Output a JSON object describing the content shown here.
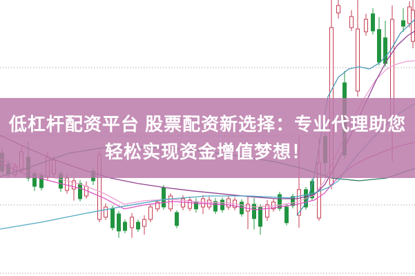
{
  "banner": {
    "line1": "低杠杆配资平台 股票配资新选择：专业代理助您",
    "line2": "轻松实现资金增值梦想！",
    "background_color": "rgba(186,120,168,0.84)",
    "text_color": "#ffffff"
  },
  "colors": {
    "background": "#ffffff",
    "grid": "#aaaaaa",
    "up_candle": "#c5394e",
    "down_candle": "#219440"
  },
  "chart_data": {
    "type": "candlestick",
    "title": "",
    "axis_labels_visible": false,
    "grid": "horizontal-dotted",
    "xlim": [
      0,
      601
    ],
    "ylim": [
      0,
      100
    ],
    "gridlines_y": [
      75.5,
      50.75,
      25.75,
      1
    ],
    "candle_note_scale": "price normalized 0-100 of chart height (no axis labels shown in image)",
    "candles": [
      [
        3,
        46.3,
        44.5,
        38,
        37,
        "down"
      ],
      [
        12,
        42,
        40.5,
        37,
        36,
        "down"
      ],
      [
        22,
        41,
        39.5,
        36.8,
        35.8,
        "up"
      ],
      [
        31,
        46.8,
        45,
        38.3,
        37.3,
        "up"
      ],
      [
        41,
        48.8,
        43,
        35.5,
        34.3,
        "down"
      ],
      [
        50,
        38.3,
        37,
        32.5,
        30.8,
        "down"
      ],
      [
        60,
        37.5,
        36.5,
        32,
        31,
        "down"
      ],
      [
        69,
        44.8,
        43,
        36,
        34.5,
        "up"
      ],
      [
        78,
        43.5,
        42,
        37,
        35.5,
        "up"
      ],
      [
        88,
        38,
        37,
        31.8,
        30.5,
        "down"
      ],
      [
        97,
        36.8,
        35.5,
        31,
        29.8,
        "up"
      ],
      [
        107,
        35.8,
        34.5,
        31.5,
        27.3,
        "up"
      ],
      [
        116,
        34.8,
        33.5,
        28,
        27,
        "down"
      ],
      [
        125,
        34.3,
        32.5,
        29,
        28,
        "up"
      ],
      [
        135,
        39,
        38,
        34.5,
        33,
        "down"
      ],
      [
        144,
        45.3,
        44,
        20.5,
        19.5,
        "up"
      ],
      [
        153,
        26.3,
        25,
        21.3,
        20.3,
        "up"
      ],
      [
        163,
        25.5,
        24.5,
        17.5,
        16.5,
        "down"
      ],
      [
        172,
        23.5,
        22.5,
        16.3,
        13.8,
        "down"
      ],
      [
        181,
        20.5,
        19.5,
        16.5,
        15.5,
        "down"
      ],
      [
        191,
        22.8,
        21.3,
        17.5,
        13.8,
        "up"
      ],
      [
        200,
        20.5,
        19.5,
        17,
        16,
        "down"
      ],
      [
        209,
        22,
        20.5,
        18,
        15,
        "up"
      ],
      [
        218,
        25.8,
        25,
        20.5,
        19.5,
        "up"
      ],
      [
        228,
        27.5,
        26.8,
        24.3,
        23.3,
        "up"
      ],
      [
        237,
        33,
        32,
        25,
        24,
        "down"
      ],
      [
        247,
        30,
        29,
        24.3,
        23.3,
        "up"
      ],
      [
        256,
        23.8,
        23,
        18.3,
        17.3,
        "down"
      ],
      [
        265,
        29.3,
        28,
        25,
        23.8,
        "up"
      ],
      [
        275,
        28.8,
        27.5,
        24.5,
        23.5,
        "up"
      ],
      [
        284,
        28.3,
        27,
        24.3,
        23,
        "down"
      ],
      [
        294,
        29.3,
        28,
        25,
        22.5,
        "up"
      ],
      [
        303,
        28.8,
        27.5,
        25,
        24,
        "up"
      ],
      [
        312,
        28.3,
        27,
        23.5,
        22.5,
        "down"
      ],
      [
        322,
        28.5,
        27.5,
        24,
        23,
        "down"
      ],
      [
        331,
        29,
        28,
        25,
        24,
        "up"
      ],
      [
        340,
        28.5,
        27.5,
        24.8,
        23.8,
        "up"
      ],
      [
        350,
        27.8,
        26.8,
        22.5,
        21.5,
        "down"
      ],
      [
        359,
        28.8,
        26,
        23.5,
        17,
        "up"
      ],
      [
        368,
        28.3,
        26,
        20.8,
        16.8,
        "down"
      ],
      [
        377,
        26,
        25,
        18,
        15,
        "down"
      ],
      [
        387,
        27.5,
        25.8,
        21.3,
        20,
        "up"
      ],
      [
        396,
        27.8,
        26.8,
        24.3,
        23.3,
        "up"
      ],
      [
        405,
        30.5,
        29.5,
        24.5,
        23.5,
        "down"
      ],
      [
        415,
        26,
        25,
        19.3,
        18.3,
        "down"
      ],
      [
        424,
        29.8,
        28.8,
        25.5,
        24.5,
        "down"
      ],
      [
        433,
        50.5,
        31.3,
        22,
        17.5,
        "up"
      ],
      [
        443,
        32.3,
        31.3,
        25,
        24,
        "down"
      ],
      [
        452,
        35.3,
        34.3,
        28.3,
        27.3,
        "down"
      ],
      [
        462,
        50,
        41,
        21,
        20,
        "up"
      ],
      [
        471,
        52,
        50.5,
        41,
        36.3,
        "down"
      ],
      [
        480,
        100,
        90,
        33,
        31.5,
        "up"
      ],
      [
        490,
        100,
        98,
        95.3,
        93.3,
        "up"
      ],
      [
        499,
        74.3,
        70,
        43.8,
        42.5,
        "down"
      ],
      [
        509,
        96.3,
        94,
        90,
        88.8,
        "up"
      ],
      [
        518,
        100,
        89.5,
        67,
        65,
        "up"
      ],
      [
        530,
        95,
        93,
        88.5,
        87,
        "up"
      ],
      [
        540,
        97,
        95,
        88.8,
        87.5,
        "down"
      ],
      [
        549,
        93.8,
        89.3,
        77.5,
        76.3,
        "down"
      ],
      [
        558,
        92.5,
        86.3,
        77,
        75.8,
        "down"
      ],
      [
        568,
        98,
        93,
        57.5,
        41.3,
        "up"
      ],
      [
        584,
        97,
        92.5,
        90.5,
        88.5,
        "down"
      ],
      [
        593,
        99.5,
        97.5,
        91.5,
        90,
        "up"
      ],
      [
        598,
        100,
        96.3,
        85,
        82.5,
        "up"
      ]
    ],
    "lines": [
      {
        "name": "ma-pink",
        "color": "#ee9fd2",
        "points": [
          [
            0,
            42.5
          ],
          [
            40,
            38
          ],
          [
            80,
            35.5
          ],
          [
            120,
            33
          ],
          [
            150,
            30
          ],
          [
            180,
            26
          ],
          [
            210,
            27.3
          ],
          [
            250,
            27.8
          ],
          [
            290,
            26.8
          ],
          [
            330,
            26.5
          ],
          [
            370,
            25
          ],
          [
            400,
            25.5
          ],
          [
            430,
            26.8
          ],
          [
            455,
            29.3
          ],
          [
            470,
            34.5
          ],
          [
            485,
            43
          ],
          [
            500,
            51
          ],
          [
            515,
            58.5
          ],
          [
            530,
            65.5
          ],
          [
            545,
            71.3
          ],
          [
            560,
            75
          ],
          [
            575,
            76.8
          ],
          [
            590,
            77.8
          ],
          [
            601,
            78
          ]
        ]
      },
      {
        "name": "ma-magenta",
        "color": "#dd4fc0",
        "points": [
          [
            0,
            41
          ],
          [
            40,
            36.5
          ],
          [
            80,
            34
          ],
          [
            120,
            31.5
          ],
          [
            150,
            28.3
          ],
          [
            180,
            24.3
          ],
          [
            210,
            25.8
          ],
          [
            250,
            27
          ],
          [
            290,
            26.3
          ],
          [
            330,
            25.8
          ],
          [
            370,
            24
          ],
          [
            400,
            24.8
          ],
          [
            430,
            26
          ],
          [
            455,
            27.5
          ],
          [
            470,
            30
          ],
          [
            485,
            34.5
          ],
          [
            500,
            38
          ],
          [
            515,
            40.5
          ],
          [
            530,
            42.5
          ],
          [
            545,
            44
          ],
          [
            560,
            45.5
          ],
          [
            575,
            46.8
          ],
          [
            590,
            47.8
          ],
          [
            601,
            48.5
          ]
        ]
      },
      {
        "name": "ma-purple",
        "color": "#8f4191",
        "points": [
          [
            0,
            51
          ],
          [
            40,
            46.3
          ],
          [
            80,
            42
          ],
          [
            120,
            38.5
          ],
          [
            160,
            35.5
          ],
          [
            200,
            33.5
          ],
          [
            240,
            32
          ],
          [
            280,
            30.8
          ],
          [
            320,
            29.8
          ],
          [
            360,
            28.8
          ],
          [
            400,
            28
          ],
          [
            430,
            28
          ],
          [
            455,
            29.5
          ],
          [
            470,
            33
          ],
          [
            485,
            39.5
          ],
          [
            500,
            47
          ],
          [
            515,
            55
          ],
          [
            530,
            63
          ],
          [
            545,
            71
          ],
          [
            560,
            78
          ],
          [
            575,
            83.5
          ],
          [
            590,
            87
          ],
          [
            601,
            88.8
          ]
        ]
      },
      {
        "name": "ma-slate-green",
        "color": "#2a7a60",
        "points": [
          [
            0,
            36
          ],
          [
            50,
            40
          ],
          [
            100,
            44.5
          ],
          [
            150,
            46.5
          ],
          [
            200,
            46.8
          ],
          [
            250,
            46.3
          ],
          [
            300,
            45
          ],
          [
            350,
            43.3
          ],
          [
            400,
            41.3
          ],
          [
            440,
            38.8
          ],
          [
            480,
            35.5
          ],
          [
            520,
            34.5
          ],
          [
            560,
            35.5
          ],
          [
            601,
            39
          ]
        ]
      },
      {
        "name": "ma-teal",
        "color": "#52a8c4",
        "points": [
          [
            0,
            17
          ],
          [
            60,
            19.5
          ],
          [
            120,
            22.5
          ],
          [
            180,
            25.3
          ],
          [
            240,
            27.8
          ],
          [
            300,
            29
          ],
          [
            360,
            29
          ],
          [
            420,
            28.3
          ],
          [
            455,
            30
          ],
          [
            475,
            32
          ],
          [
            490,
            34.5
          ],
          [
            505,
            40
          ],
          [
            520,
            44.5
          ],
          [
            540,
            50
          ],
          [
            560,
            55
          ],
          [
            580,
            59.3
          ],
          [
            601,
            62.5
          ]
        ]
      },
      {
        "name": "ma-steel-blue",
        "color": "#4696b4",
        "points": [
          [
            430,
            22
          ],
          [
            445,
            27
          ],
          [
            455,
            36.3
          ],
          [
            465,
            51.3
          ],
          [
            475,
            65
          ],
          [
            490,
            72
          ],
          [
            505,
            75
          ],
          [
            520,
            75.8
          ],
          [
            535,
            75
          ],
          [
            550,
            77.3
          ],
          [
            565,
            81.5
          ],
          [
            580,
            88
          ],
          [
            601,
            93
          ]
        ]
      }
    ]
  }
}
